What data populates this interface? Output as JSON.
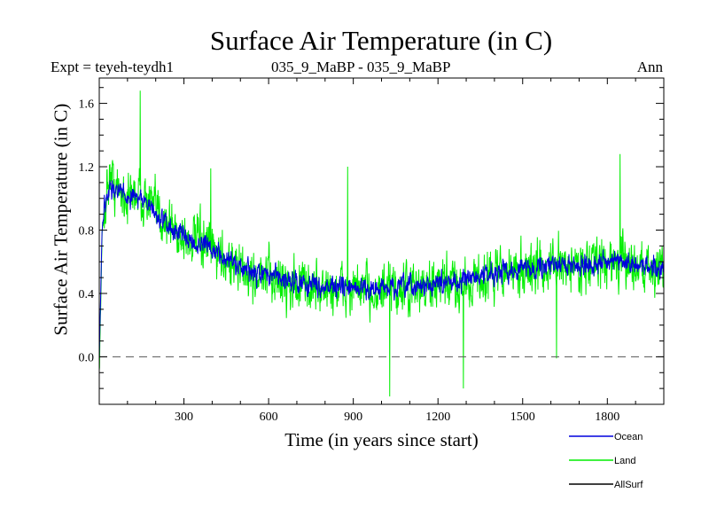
{
  "chart_data": {
    "type": "line",
    "title": "Surface Air Temperature (in C)",
    "subtitle_left": "Expt = teyeh-teydh1",
    "subtitle_center": "035_9_MaBP - 035_9_MaBP",
    "subtitle_right": "Ann",
    "xlabel": "Time (in years since start)",
    "ylabel": "Surface Air Temperature (in C)",
    "xlim": [
      0,
      2000
    ],
    "ylim": [
      -0.3,
      1.76
    ],
    "xticks": [
      300,
      600,
      900,
      1200,
      1500,
      1800
    ],
    "xtick_labels": [
      "300",
      "600",
      "900",
      "1200",
      "1500",
      "1800"
    ],
    "yticks": [
      0.0,
      0.4,
      0.8,
      1.2,
      1.6
    ],
    "ytick_labels": [
      "0.0",
      "0.4",
      "0.8",
      "1.2",
      "1.6"
    ],
    "reference_line": 0.0,
    "legend_position": "bottom-right",
    "series": [
      {
        "name": "Land",
        "color": "#00ee00",
        "x": [
          0,
          10,
          20,
          30,
          40,
          60,
          80,
          100,
          130,
          160,
          200,
          240,
          270,
          300,
          350,
          400,
          450,
          500,
          550,
          600,
          700,
          800,
          900,
          1000,
          1100,
          1200,
          1300,
          1400,
          1500,
          1600,
          1700,
          1800,
          1900,
          2000
        ],
        "values": [
          -0.1,
          0.75,
          0.95,
          1.1,
          1.15,
          1.05,
          1.05,
          1.0,
          1.05,
          1.0,
          0.92,
          0.85,
          0.8,
          0.75,
          0.72,
          0.68,
          0.62,
          0.55,
          0.5,
          0.5,
          0.45,
          0.43,
          0.42,
          0.41,
          0.42,
          0.44,
          0.47,
          0.52,
          0.55,
          0.57,
          0.58,
          0.6,
          0.58,
          0.55
        ],
        "noise_amplitude": 0.22,
        "extremes": [
          {
            "x": 145,
            "value": 1.68
          },
          {
            "x": 395,
            "value": 1.19
          },
          {
            "x": 880,
            "value": 1.2
          },
          {
            "x": 1029,
            "value": -0.25
          },
          {
            "x": 1290,
            "value": -0.2
          },
          {
            "x": 1620,
            "value": -0.01
          },
          {
            "x": 1845,
            "value": 1.28
          }
        ]
      },
      {
        "name": "Ocean",
        "color": "#0000dd",
        "x": [
          0,
          10,
          20,
          30,
          40,
          60,
          80,
          100,
          130,
          160,
          200,
          240,
          270,
          300,
          350,
          400,
          450,
          500,
          550,
          600,
          700,
          800,
          900,
          1000,
          1100,
          1200,
          1300,
          1400,
          1500,
          1600,
          1700,
          1800,
          1900,
          2000
        ],
        "values": [
          0.0,
          0.8,
          0.98,
          1.05,
          1.08,
          1.05,
          1.04,
          1.0,
          1.03,
          0.98,
          0.9,
          0.83,
          0.8,
          0.76,
          0.72,
          0.68,
          0.62,
          0.56,
          0.52,
          0.52,
          0.47,
          0.45,
          0.43,
          0.43,
          0.44,
          0.46,
          0.49,
          0.53,
          0.56,
          0.58,
          0.58,
          0.6,
          0.58,
          0.56
        ],
        "noise_amplitude": 0.09
      },
      {
        "name": "AllSurf",
        "color": "#000000",
        "x": [],
        "values": []
      }
    ]
  }
}
